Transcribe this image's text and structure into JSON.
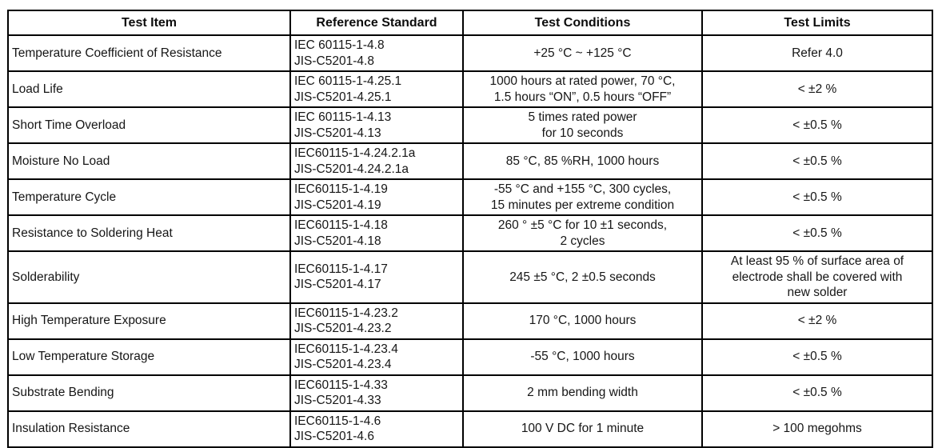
{
  "table": {
    "columns": [
      "Test Item",
      "Reference Standard",
      "Test Conditions",
      "Test Limits"
    ],
    "rows": [
      {
        "item": "Temperature Coefficient of Resistance",
        "standard": [
          "IEC 60115-1-4.8",
          "JIS-C5201-4.8"
        ],
        "conditions": [
          "+25 °C ~ +125 °C"
        ],
        "limits": [
          "Refer 4.0"
        ]
      },
      {
        "item": "Load Life",
        "standard": [
          "IEC 60115-1-4.25.1",
          "JIS-C5201-4.25.1"
        ],
        "conditions": [
          "1000 hours at rated power, 70 °C,",
          "1.5 hours “ON”, 0.5 hours “OFF”"
        ],
        "limits": [
          "< ±2 %"
        ]
      },
      {
        "item": "Short Time Overload",
        "standard": [
          "IEC 60115-1-4.13",
          "JIS-C5201-4.13"
        ],
        "conditions": [
          "5 times rated power",
          "for 10 seconds"
        ],
        "limits": [
          "< ±0.5 %"
        ]
      },
      {
        "item": "Moisture No Load",
        "standard": [
          "IEC60115-1-4.24.2.1a",
          "JIS-C5201-4.24.2.1a"
        ],
        "conditions": [
          "85 °C, 85 %RH, 1000 hours"
        ],
        "limits": [
          "< ±0.5 %"
        ]
      },
      {
        "item": "Temperature Cycle",
        "standard": [
          "IEC60115-1-4.19",
          "JIS-C5201-4.19"
        ],
        "conditions": [
          "-55 °C and +155 °C, 300 cycles,",
          "15 minutes per extreme condition"
        ],
        "limits": [
          "< ±0.5 %"
        ]
      },
      {
        "item": "Resistance to Soldering Heat",
        "standard": [
          "IEC60115-1-4.18",
          "JIS-C5201-4.18"
        ],
        "conditions": [
          "260 ° ±5 °C for 10 ±1 seconds,",
          "2 cycles"
        ],
        "limits": [
          "< ±0.5 %"
        ]
      },
      {
        "item": "Solderability",
        "standard": [
          "IEC60115-1-4.17",
          "JIS-C5201-4.17"
        ],
        "conditions": [
          "245 ±5 °C, 2 ±0.5 seconds"
        ],
        "limits": [
          "At least 95 % of surface area of",
          "electrode shall be covered with",
          "new solder"
        ]
      },
      {
        "item": "High Temperature Exposure",
        "standard": [
          "IEC60115-1-4.23.2",
          "JIS-C5201-4.23.2"
        ],
        "conditions": [
          "170 °C, 1000 hours"
        ],
        "limits": [
          "< ±2 %"
        ]
      },
      {
        "item": "Low Temperature Storage",
        "standard": [
          "IEC60115-1-4.23.4",
          "JIS-C5201-4.23.4"
        ],
        "conditions": [
          "-55 °C, 1000 hours"
        ],
        "limits": [
          "< ±0.5 %"
        ]
      },
      {
        "item": "Substrate Bending",
        "standard": [
          "IEC60115-1-4.33",
          "JIS-C5201-4.33"
        ],
        "conditions": [
          "2 mm bending width"
        ],
        "limits": [
          "< ±0.5 %"
        ]
      },
      {
        "item": "Insulation Resistance",
        "standard": [
          "IEC60115-1-4.6",
          "JIS-C5201-4.6"
        ],
        "conditions": [
          "100 V DC for 1 minute"
        ],
        "limits": [
          "> 100 megohms"
        ]
      }
    ]
  }
}
